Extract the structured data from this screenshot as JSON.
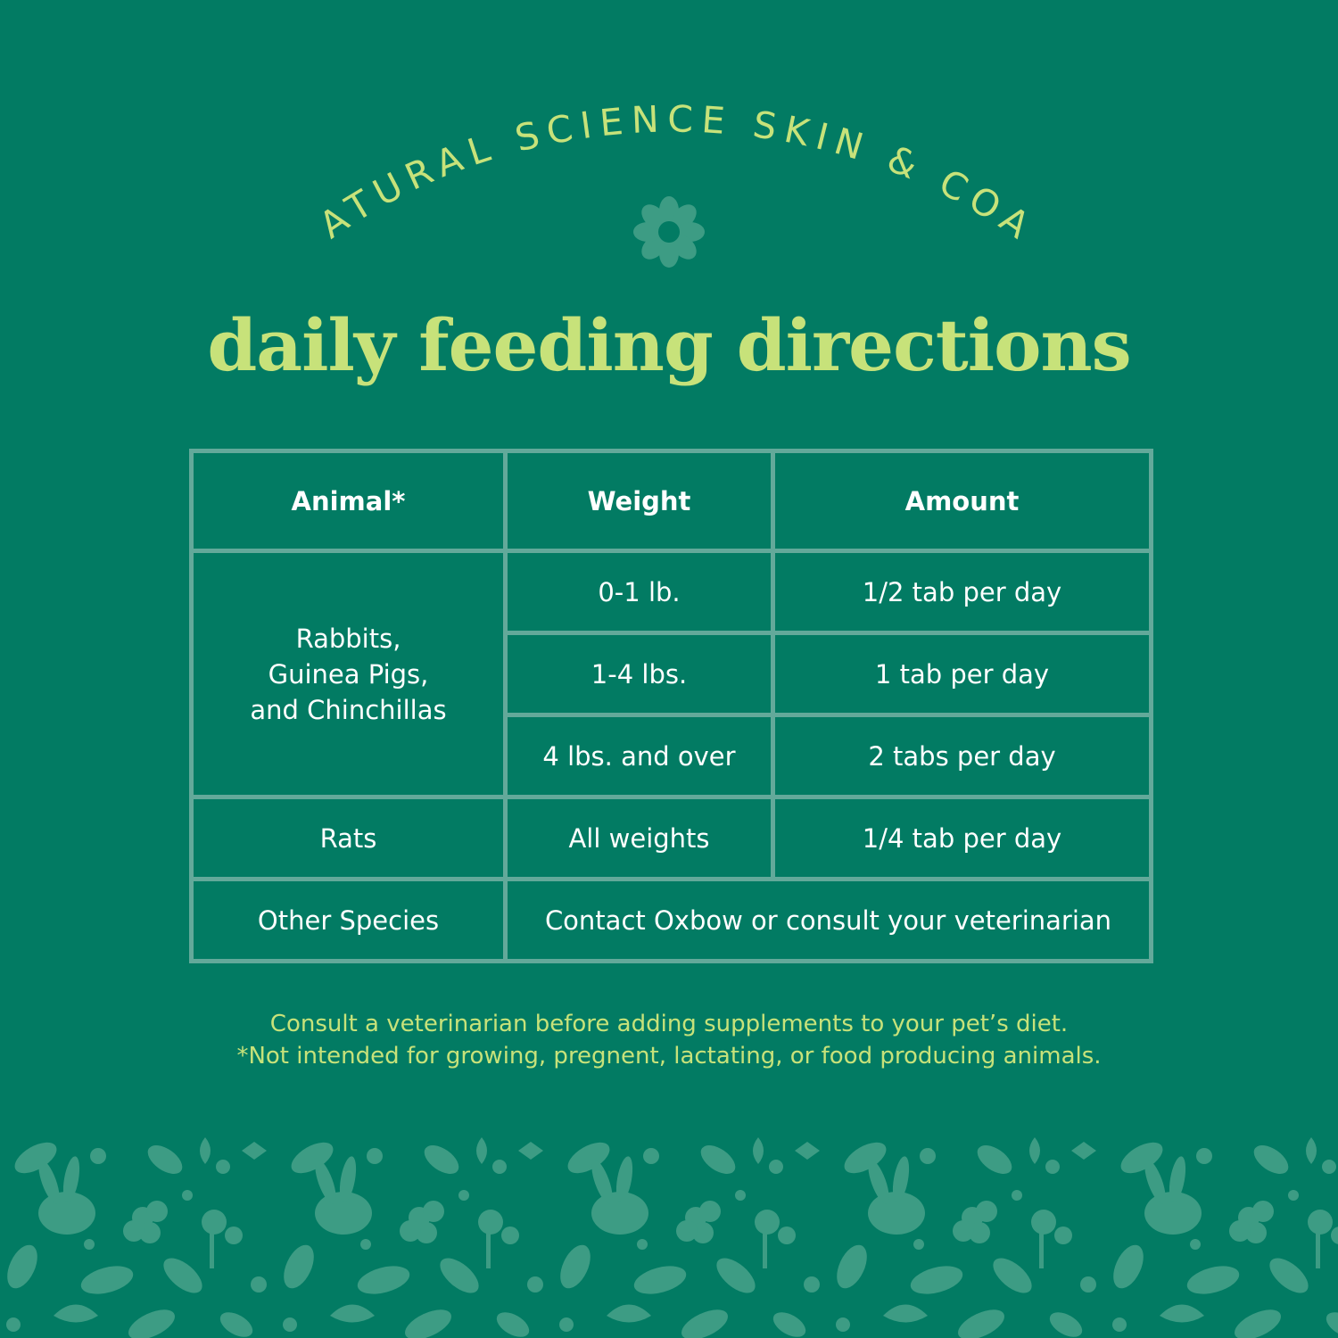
{
  "brand": {
    "arc_text": "NATURAL SCIENCE SKIN & COAT"
  },
  "title": "daily feeding directions",
  "table": {
    "headers": [
      "Animal*",
      "Weight",
      "Amount"
    ],
    "group1": {
      "animal_lines": [
        "Rabbits,",
        "Guinea Pigs,",
        "and Chinchillas"
      ],
      "rows": [
        {
          "weight": "0-1 lb.",
          "amount": "1/2 tab per day"
        },
        {
          "weight": "1-4 lbs.",
          "amount": "1 tab per day"
        },
        {
          "weight": "4 lbs. and over",
          "amount": "2 tabs per day"
        }
      ]
    },
    "rats": {
      "animal": "Rats",
      "weight": "All weights",
      "amount": "1/4 tab per day"
    },
    "other": {
      "animal": "Other Species",
      "note": "Contact Oxbow or consult your veterinarian"
    }
  },
  "notes": [
    "Consult a veterinarian before adding supplements to your pet’s diet.",
    "*Not intended for growing, pregnent, lactating, or food producing animals."
  ],
  "colors": {
    "background": "#027b63",
    "accent_text": "#c7e27a",
    "grid_lines": "#63a99a",
    "pattern": "#3d9c84"
  }
}
